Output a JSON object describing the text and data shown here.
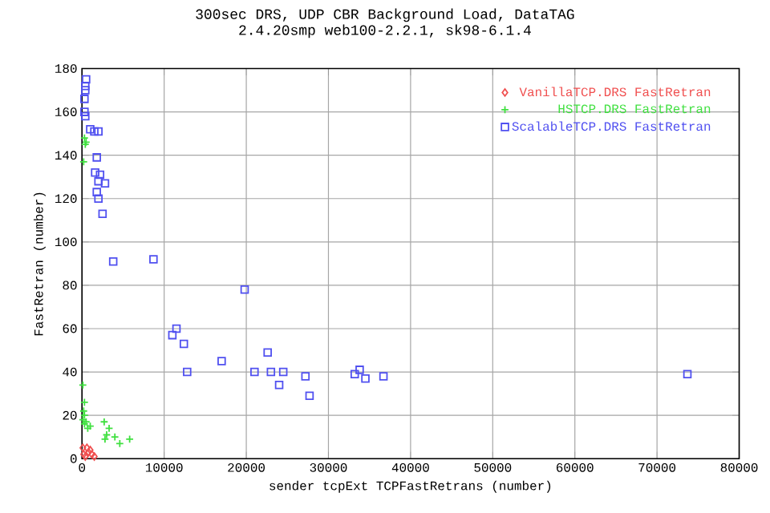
{
  "chart_data": {
    "type": "scatter",
    "title": "300sec DRS, UDP CBR Background Load, DataTAG",
    "subtitle": "2.4.20smp web100-2.2.1, sk98-6.1.4",
    "xlabel": "sender tcpExt TCPFastRetrans (number)",
    "ylabel": "FastRetran (number)",
    "xlim": [
      0,
      80000
    ],
    "ylim": [
      0,
      180
    ],
    "xticks": [
      0,
      10000,
      20000,
      30000,
      40000,
      50000,
      60000,
      70000,
      80000
    ],
    "yticks": [
      0,
      20,
      40,
      60,
      80,
      100,
      120,
      140,
      160,
      180
    ],
    "grid": true,
    "legend": "top right",
    "series": [
      {
        "name": "VanillaTCP.DRS FastRetran",
        "color": "#f05050",
        "marker": "diamond",
        "x": [
          100,
          1000,
          1500,
          800,
          200,
          1200,
          600,
          400
        ],
        "values": [
          5,
          4,
          1,
          3,
          2,
          2,
          5,
          1
        ]
      },
      {
        "name": "HSTCP.DRS FastRetran",
        "color": "#40e040",
        "marker": "cross",
        "x": [
          300,
          500,
          400,
          200,
          100,
          300,
          200,
          300,
          100,
          500,
          300,
          1000,
          700,
          2700,
          3300,
          3000,
          4000,
          4600,
          2800,
          5800
        ],
        "values": [
          148,
          146,
          145,
          137,
          34,
          26,
          22,
          20,
          18,
          17,
          16,
          15,
          14,
          17,
          14,
          11,
          10,
          7,
          9,
          9
        ]
      },
      {
        "name": "ScalableTCP.DRS FastRetran",
        "color": "#5050f0",
        "marker": "square",
        "x": [
          500,
          400,
          400,
          300,
          300,
          400,
          1000,
          1500,
          2000,
          1800,
          1600,
          2200,
          2000,
          2800,
          1800,
          2000,
          2500,
          3800,
          8700,
          11000,
          11500,
          12400,
          12800,
          17000,
          19800,
          21000,
          22600,
          23000,
          24000,
          24500,
          27200,
          27700,
          33200,
          33800,
          34500,
          36700,
          73700
        ],
        "values": [
          175,
          172,
          170,
          166,
          160,
          158,
          152,
          151,
          151,
          139,
          132,
          131,
          128,
          127,
          123,
          120,
          113,
          91,
          92,
          57,
          60,
          53,
          40,
          45,
          78,
          40,
          49,
          40,
          34,
          40,
          38,
          29,
          39,
          41,
          37,
          38,
          39
        ]
      }
    ]
  }
}
